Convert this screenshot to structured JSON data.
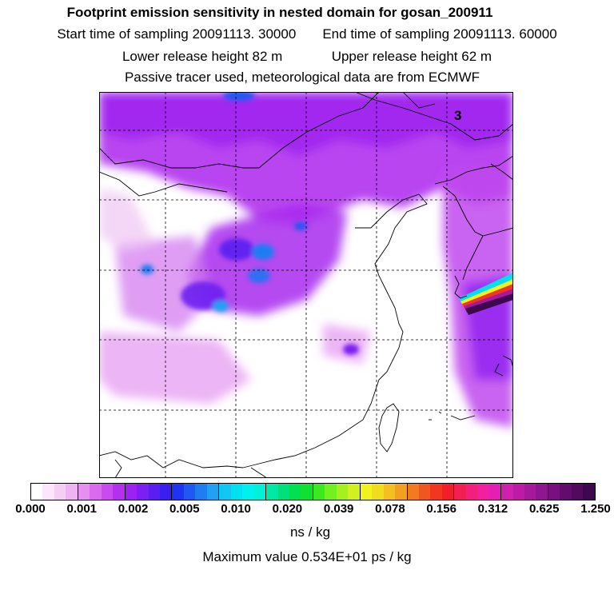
{
  "header": {
    "title": "Footprint emission sensitivity in nested domain for gosan_200911",
    "start_sampling": "Start time of sampling 20091113. 30000",
    "end_sampling": "End time of sampling 20091113. 60000",
    "lower_release": "Lower release height   82 m",
    "upper_release": "Upper release height   62 m",
    "tracer_info": "Passive tracer used, meteorological data are from ECMWF"
  },
  "map": {
    "domain_number": "3",
    "background": "#ffffff",
    "grid_style": "dashed"
  },
  "colorbar": {
    "ticks": [
      "0.000",
      "0.001",
      "0.002",
      "0.005",
      "0.010",
      "0.020",
      "0.039",
      "0.078",
      "0.156",
      "0.312",
      "0.625",
      "1.250"
    ],
    "unit": "ns / kg",
    "colors": [
      "#ffffff",
      "#fbe6fb",
      "#f5cdf5",
      "#efb3f3",
      "#e68ff0",
      "#da6af0",
      "#c94bf0",
      "#b62ff0",
      "#9b22f2",
      "#7b1ff2",
      "#5a1ff0",
      "#3c1ff0",
      "#2133f2",
      "#1f58f2",
      "#1f7df2",
      "#1fa2f2",
      "#11c8f0",
      "#00e0f0",
      "#00f0f0",
      "#00f0d8",
      "#00e8a5",
      "#00e07a",
      "#00e050",
      "#10e030",
      "#3ce81f",
      "#72f01f",
      "#a6f01f",
      "#d2f01f",
      "#f2f21f",
      "#f2dc1f",
      "#f2c01f",
      "#f2a01f",
      "#f27a1f",
      "#f2561f",
      "#f2361f",
      "#f21f2a",
      "#f21f55",
      "#f21f7c",
      "#f21fa0",
      "#e61fb4",
      "#d21fae",
      "#be1aa8",
      "#a8189c",
      "#901590",
      "#7a1080",
      "#640c6e",
      "#500a5e",
      "#3e0850"
    ]
  },
  "footer": {
    "max_value": "Maximum value  0.534E+01 ps / kg"
  }
}
